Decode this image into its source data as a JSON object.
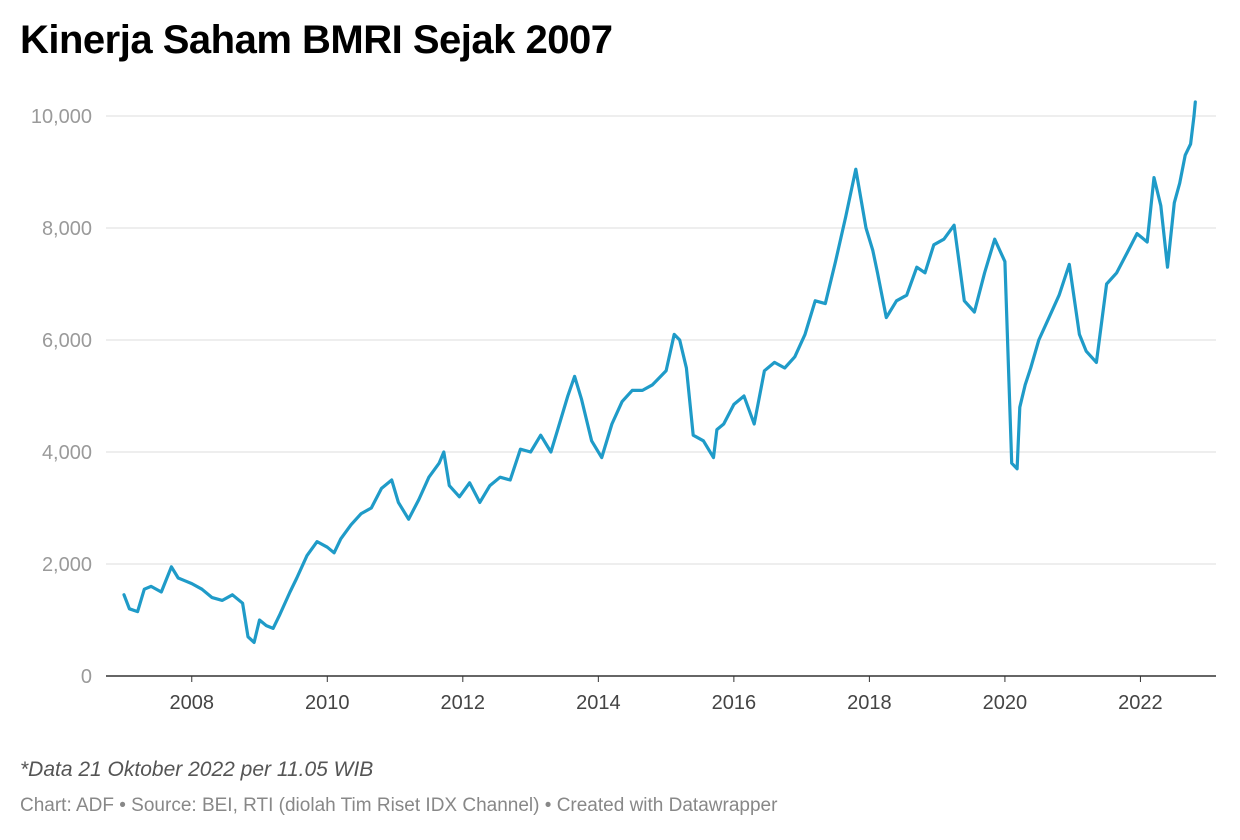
{
  "chart_data": {
    "type": "line",
    "title": "Kinerja Saham BMRI Sejak 2007",
    "xlabel": "",
    "ylabel": "",
    "xlim": [
      2007.0,
      2022.82
    ],
    "ylim": [
      0,
      10000
    ],
    "y_ticks": [
      0,
      2000,
      4000,
      6000,
      8000,
      10000
    ],
    "y_tick_labels": [
      "0",
      "2,000",
      "4,000",
      "6,000",
      "8,000",
      "10,000"
    ],
    "x_ticks": [
      2008,
      2010,
      2012,
      2014,
      2016,
      2018,
      2020,
      2022
    ],
    "x_tick_labels": [
      "2008",
      "2010",
      "2012",
      "2014",
      "2016",
      "2018",
      "2020",
      "2022"
    ],
    "grid": true,
    "color": "#1f9bc8",
    "series": [
      {
        "x": [
          2007.0,
          2007.08,
          2007.2,
          2007.3,
          2007.4,
          2007.55,
          2007.7,
          2007.8,
          2007.9,
          2008.0,
          2008.15,
          2008.3,
          2008.45,
          2008.6,
          2008.75,
          2008.83,
          2008.92,
          2009.0,
          2009.1,
          2009.2,
          2009.3,
          2009.45,
          2009.55,
          2009.7,
          2009.85,
          2010.0,
          2010.1,
          2010.2,
          2010.35,
          2010.5,
          2010.65,
          2010.8,
          2010.95,
          2011.05,
          2011.2,
          2011.35,
          2011.5,
          2011.65,
          2011.72,
          2011.8,
          2011.95,
          2012.1,
          2012.25,
          2012.4,
          2012.55,
          2012.7,
          2012.85,
          2013.0,
          2013.15,
          2013.3,
          2013.4,
          2013.55,
          2013.65,
          2013.75,
          2013.9,
          2014.05,
          2014.2,
          2014.35,
          2014.5,
          2014.65,
          2014.8,
          2015.0,
          2015.12,
          2015.2,
          2015.3,
          2015.4,
          2015.55,
          2015.7,
          2015.75,
          2015.85,
          2016.0,
          2016.15,
          2016.3,
          2016.45,
          2016.6,
          2016.75,
          2016.9,
          2017.05,
          2017.2,
          2017.35,
          2017.5,
          2017.65,
          2017.8,
          2017.95,
          2018.05,
          2018.12,
          2018.25,
          2018.4,
          2018.55,
          2018.7,
          2018.82,
          2018.95,
          2019.1,
          2019.25,
          2019.4,
          2019.55,
          2019.7,
          2019.85,
          2020.0,
          2020.1,
          2020.18,
          2020.22,
          2020.3,
          2020.38,
          2020.5,
          2020.65,
          2020.8,
          2020.95,
          2021.1,
          2021.2,
          2021.35,
          2021.5,
          2021.65,
          2021.8,
          2021.95,
          2022.1,
          2022.2,
          2022.3,
          2022.4,
          2022.5,
          2022.58,
          2022.66,
          2022.74,
          2022.79,
          2022.81
        ],
        "y": [
          1450,
          1200,
          1150,
          1550,
          1600,
          1500,
          1950,
          1750,
          1700,
          1650,
          1550,
          1400,
          1350,
          1450,
          1300,
          700,
          600,
          1000,
          900,
          850,
          1100,
          1500,
          1750,
          2150,
          2400,
          2300,
          2200,
          2450,
          2700,
          2900,
          3000,
          3350,
          3500,
          3100,
          2800,
          3150,
          3550,
          3800,
          4000,
          3400,
          3200,
          3450,
          3100,
          3400,
          3550,
          3500,
          4050,
          4000,
          4300,
          4000,
          4400,
          5000,
          5350,
          4950,
          4200,
          3900,
          4500,
          4900,
          5100,
          5100,
          5200,
          5450,
          6100,
          6000,
          5500,
          4300,
          4200,
          3900,
          4400,
          4500,
          4850,
          5000,
          4500,
          5450,
          5600,
          5500,
          5700,
          6100,
          6700,
          6650,
          7400,
          8200,
          9050,
          8000,
          7600,
          7200,
          6400,
          6700,
          6800,
          7300,
          7200,
          7700,
          7800,
          8050,
          6700,
          6500,
          7200,
          7800,
          7400,
          3800,
          3700,
          4800,
          5200,
          5500,
          6000,
          6400,
          6800,
          7350,
          6100,
          5800,
          5600,
          7000,
          7200,
          7550,
          7900,
          7750,
          8900,
          8400,
          7300,
          8450,
          8800,
          9300,
          9500,
          10000,
          10250
        ]
      }
    ],
    "notes": "*Data 21 Oktober 2022 per 11.05 WIB",
    "credit": "Chart: ADF • Source: BEI, RTI (diolah Tim Riset IDX Channel) • Created with Datawrapper"
  }
}
